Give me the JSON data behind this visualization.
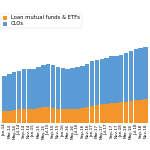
{
  "labels": [
    "Jan-14",
    "Mar-14",
    "May-14",
    "Jul-14",
    "Sep-14",
    "Nov-14",
    "Jan-15",
    "Mar-15",
    "May-15",
    "Jul-15",
    "Sep-15",
    "Nov-15",
    "Jan-16",
    "Mar-16",
    "May-16",
    "Jul-16",
    "Sep-16",
    "Nov-16",
    "Jan-17",
    "Mar-17",
    "May-17",
    "Jul-17",
    "Sep-17",
    "Nov-17",
    "Jan-18",
    "Mar-18",
    "May-18",
    "Jul-18",
    "Sep-18",
    "Nov-18"
  ],
  "clos": [
    55,
    57,
    59,
    60,
    61,
    61,
    62,
    64,
    66,
    67,
    66,
    65,
    64,
    63,
    63,
    64,
    65,
    66,
    68,
    69,
    70,
    71,
    72,
    72,
    73,
    75,
    77,
    79,
    80,
    81
  ],
  "loan_mf": [
    18,
    19,
    20,
    21,
    22,
    22,
    22,
    23,
    24,
    24,
    23,
    22,
    21,
    21,
    22,
    22,
    23,
    25,
    27,
    28,
    29,
    30,
    31,
    31,
    32,
    33,
    34,
    35,
    36,
    37
  ],
  "clo_color": "#5b9bd5",
  "loan_color": "#f4952b",
  "legend_labels": [
    "CLOs",
    "Loan mutual funds & ETFs"
  ],
  "bg_color": "#ffffff",
  "ylim": [
    0,
    125
  ]
}
